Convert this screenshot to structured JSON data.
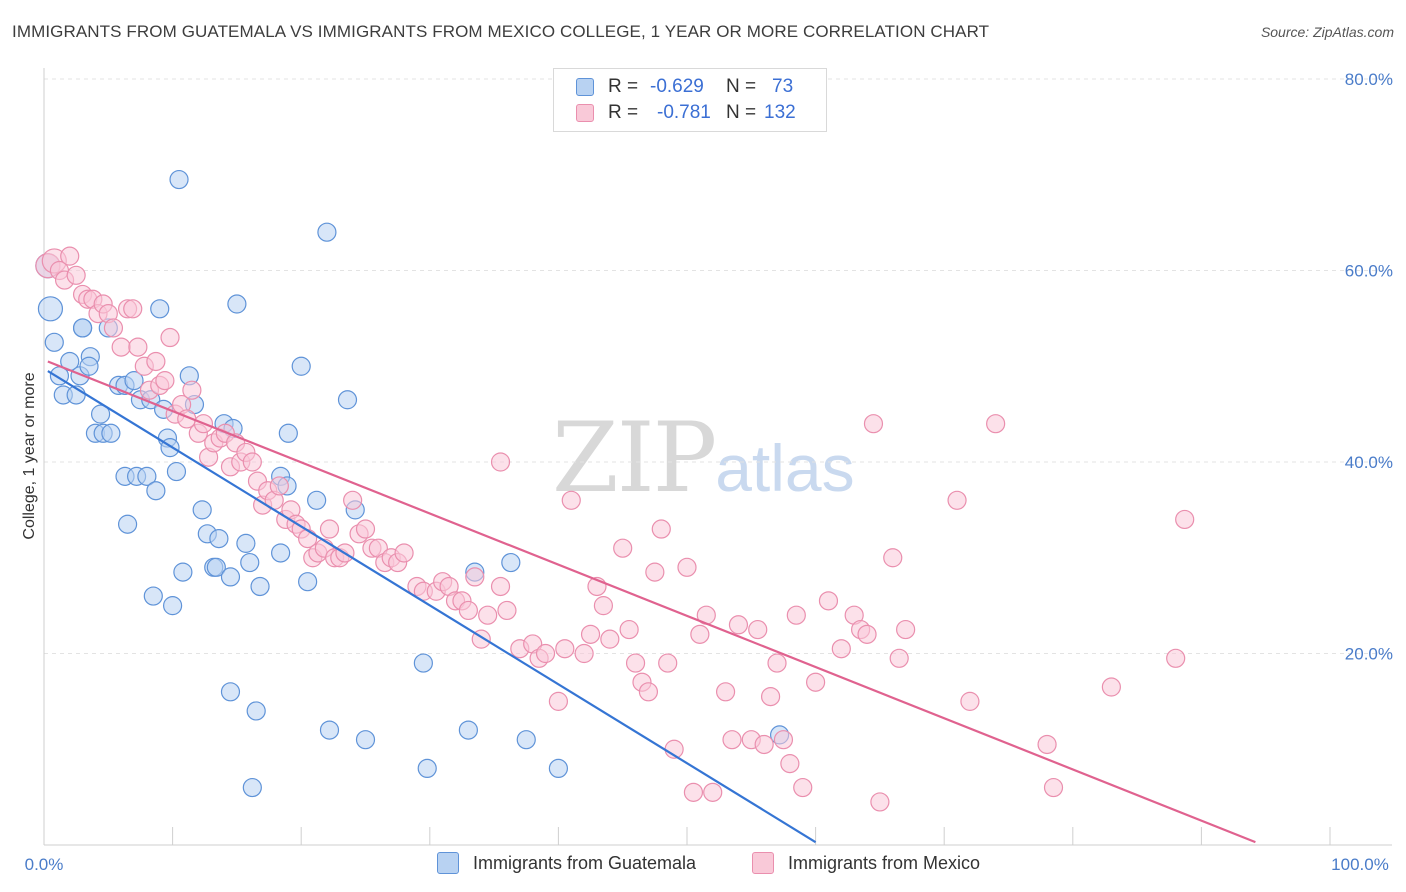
{
  "title": "IMMIGRANTS FROM GUATEMALA VS IMMIGRANTS FROM MEXICO COLLEGE, 1 YEAR OR MORE CORRELATION CHART",
  "source": "Source: ZipAtlas.com",
  "watermark": {
    "zip": "ZIP",
    "atlas": "atlas"
  },
  "legend_top": {
    "rows": [
      {
        "r_label": "R =",
        "r_value": "-0.629",
        "n_label": "N =",
        "n_value": "73"
      },
      {
        "r_label": "R =",
        "r_value": "-0.781",
        "n_label": "N =",
        "n_value": "132"
      }
    ]
  },
  "legend_bottom": {
    "items": [
      {
        "label": "Immigrants from Guatemala"
      },
      {
        "label": "Immigrants from Mexico"
      }
    ]
  },
  "colors": {
    "blue_fill": "#b8d2f2",
    "blue_stroke": "#5f93d8",
    "blue_line": "#3575d4",
    "pink_fill": "#f9c9d8",
    "pink_stroke": "#ea8fae",
    "pink_line": "#e0628f",
    "grid": "#e3e3e3",
    "axis_text": "#4a7cc9"
  },
  "chart_data": {
    "type": "scatter",
    "title": "IMMIGRANTS FROM GUATEMALA VS IMMIGRANTS FROM MEXICO COLLEGE, 1 YEAR OR MORE CORRELATION CHART",
    "xlabel": "",
    "ylabel": "College, 1 year or more",
    "xlim": [
      0,
      100
    ],
    "ylim": [
      0,
      80
    ],
    "x_tick_labels": [
      "0.0%",
      "100.0%"
    ],
    "y_ticks": [
      20,
      40,
      60,
      80
    ],
    "y_tick_labels": [
      "20.0%",
      "40.0%",
      "60.0%",
      "80.0%"
    ],
    "grid": true,
    "series": [
      {
        "name": "Immigrants from Guatemala",
        "R": -0.629,
        "N": 73,
        "trend": {
          "x": [
            0.3,
            60
          ],
          "y": [
            49.5,
            0.3
          ]
        },
        "points": [
          [
            0.3,
            60.5
          ],
          [
            0.5,
            56
          ],
          [
            0.8,
            52.5
          ],
          [
            1.2,
            49
          ],
          [
            1.5,
            47
          ],
          [
            2,
            50.5
          ],
          [
            2.5,
            47
          ],
          [
            2.8,
            49
          ],
          [
            3,
            54
          ],
          [
            3.6,
            51
          ],
          [
            3.5,
            50
          ],
          [
            4,
            43
          ],
          [
            4.4,
            45
          ],
          [
            4.6,
            43
          ],
          [
            5,
            54
          ],
          [
            5.2,
            43
          ],
          [
            5.8,
            48
          ],
          [
            6.3,
            48
          ],
          [
            7,
            48.5
          ],
          [
            6.3,
            38.5
          ],
          [
            6.5,
            33.5
          ],
          [
            7.2,
            38.5
          ],
          [
            7.5,
            46.5
          ],
          [
            8,
            38.5
          ],
          [
            8.3,
            46.5
          ],
          [
            8.5,
            26
          ],
          [
            8.7,
            37
          ],
          [
            9,
            56
          ],
          [
            9.3,
            45.5
          ],
          [
            9.6,
            42.5
          ],
          [
            9.8,
            41.5
          ],
          [
            10,
            25
          ],
          [
            10.3,
            39
          ],
          [
            10.5,
            69.5
          ],
          [
            10.8,
            28.5
          ],
          [
            11.3,
            49
          ],
          [
            11.7,
            46
          ],
          [
            12.3,
            35
          ],
          [
            12.7,
            32.5
          ],
          [
            13.2,
            29
          ],
          [
            13.4,
            29
          ],
          [
            13.6,
            32
          ],
          [
            14,
            44
          ],
          [
            14.5,
            28
          ],
          [
            14.7,
            43.5
          ],
          [
            15,
            56.5
          ],
          [
            14.5,
            16
          ],
          [
            15.7,
            31.5
          ],
          [
            16,
            29.5
          ],
          [
            16.5,
            14
          ],
          [
            16.8,
            27
          ],
          [
            16.2,
            6
          ],
          [
            18.4,
            38.5
          ],
          [
            18.9,
            37.5
          ],
          [
            19,
            43
          ],
          [
            18.4,
            30.5
          ],
          [
            20.5,
            27.5
          ],
          [
            20,
            50
          ],
          [
            21.2,
            36
          ],
          [
            22,
            64
          ],
          [
            24.2,
            35
          ],
          [
            22.2,
            12
          ],
          [
            23.6,
            46.5
          ],
          [
            25,
            11
          ],
          [
            29.5,
            19
          ],
          [
            29.8,
            8
          ],
          [
            33,
            12
          ],
          [
            33.5,
            28.5
          ],
          [
            36.3,
            29.5
          ],
          [
            37.5,
            11
          ],
          [
            57.2,
            11.5
          ],
          [
            40,
            8
          ],
          [
            3,
            54
          ]
        ]
      },
      {
        "name": "Immigrants from Mexico",
        "R": -0.781,
        "N": 132,
        "trend": {
          "x": [
            0.3,
            94.2
          ],
          "y": [
            50.5,
            0.3
          ]
        },
        "points": [
          [
            0.3,
            60.5
          ],
          [
            0.8,
            61
          ],
          [
            1.2,
            60
          ],
          [
            1.6,
            59
          ],
          [
            2,
            61.5
          ],
          [
            2.5,
            59.5
          ],
          [
            3,
            57.5
          ],
          [
            3.4,
            57
          ],
          [
            3.8,
            57
          ],
          [
            4.2,
            55.5
          ],
          [
            4.6,
            56.5
          ],
          [
            5,
            55.5
          ],
          [
            5.4,
            54
          ],
          [
            6,
            52
          ],
          [
            6.5,
            56
          ],
          [
            6.9,
            56
          ],
          [
            7.3,
            52
          ],
          [
            7.8,
            50
          ],
          [
            8.2,
            47.5
          ],
          [
            8.7,
            50.5
          ],
          [
            9,
            48
          ],
          [
            9.4,
            48.5
          ],
          [
            9.8,
            53
          ],
          [
            10.2,
            45
          ],
          [
            10.7,
            46
          ],
          [
            11.1,
            44.5
          ],
          [
            11.5,
            47.5
          ],
          [
            12,
            43
          ],
          [
            12.4,
            44
          ],
          [
            12.8,
            40.5
          ],
          [
            13.2,
            42
          ],
          [
            13.7,
            42.5
          ],
          [
            14.1,
            43
          ],
          [
            14.5,
            39.5
          ],
          [
            14.9,
            42
          ],
          [
            15.3,
            40
          ],
          [
            15.7,
            41
          ],
          [
            16.2,
            40
          ],
          [
            16.6,
            38
          ],
          [
            17,
            35.5
          ],
          [
            17.4,
            37
          ],
          [
            17.9,
            36
          ],
          [
            18.3,
            37.5
          ],
          [
            18.8,
            34
          ],
          [
            19.2,
            35
          ],
          [
            19.6,
            33.5
          ],
          [
            20,
            33
          ],
          [
            20.5,
            32
          ],
          [
            20.9,
            30
          ],
          [
            21.3,
            30.5
          ],
          [
            21.8,
            31
          ],
          [
            22.2,
            33
          ],
          [
            22.6,
            30
          ],
          [
            23,
            30
          ],
          [
            23.4,
            30.5
          ],
          [
            24,
            36
          ],
          [
            24.5,
            32.5
          ],
          [
            25,
            33
          ],
          [
            25.5,
            31
          ],
          [
            26,
            31
          ],
          [
            26.5,
            29.5
          ],
          [
            27,
            30
          ],
          [
            27.5,
            29.5
          ],
          [
            28,
            30.5
          ],
          [
            29,
            27
          ],
          [
            29.5,
            26.5
          ],
          [
            30.5,
            26.5
          ],
          [
            31,
            27.5
          ],
          [
            31.5,
            27
          ],
          [
            32,
            25.5
          ],
          [
            32.5,
            25.5
          ],
          [
            33,
            24.5
          ],
          [
            33.5,
            28
          ],
          [
            34,
            21.5
          ],
          [
            34.5,
            24
          ],
          [
            35.5,
            27
          ],
          [
            36,
            24.5
          ],
          [
            37,
            20.5
          ],
          [
            38,
            21
          ],
          [
            38.5,
            19.5
          ],
          [
            39,
            20
          ],
          [
            40,
            15
          ],
          [
            40.5,
            20.5
          ],
          [
            41,
            36
          ],
          [
            42,
            20
          ],
          [
            42.5,
            22
          ],
          [
            43,
            27
          ],
          [
            43.5,
            25
          ],
          [
            44,
            21.5
          ],
          [
            45,
            31
          ],
          [
            45.5,
            22.5
          ],
          [
            46,
            19
          ],
          [
            46.5,
            17
          ],
          [
            47,
            16
          ],
          [
            47.5,
            28.5
          ],
          [
            48,
            33
          ],
          [
            48.5,
            19
          ],
          [
            49,
            10
          ],
          [
            50,
            29
          ],
          [
            50.5,
            5.5
          ],
          [
            51,
            22
          ],
          [
            51.5,
            24
          ],
          [
            52,
            5.5
          ],
          [
            53,
            16
          ],
          [
            53.5,
            11
          ],
          [
            54,
            23
          ],
          [
            55,
            11
          ],
          [
            55.5,
            22.5
          ],
          [
            56,
            10.5
          ],
          [
            56.5,
            15.5
          ],
          [
            57,
            19
          ],
          [
            57.5,
            11
          ],
          [
            58,
            8.5
          ],
          [
            58.5,
            24
          ],
          [
            59,
            6
          ],
          [
            60,
            17
          ],
          [
            61,
            25.5
          ],
          [
            62,
            20.5
          ],
          [
            63,
            24
          ],
          [
            63.5,
            22.5
          ],
          [
            64,
            22
          ],
          [
            64.5,
            44
          ],
          [
            65,
            4.5
          ],
          [
            66,
            30
          ],
          [
            66.5,
            19.5
          ],
          [
            67,
            22.5
          ],
          [
            71,
            36
          ],
          [
            72,
            15
          ],
          [
            74,
            44
          ],
          [
            78,
            10.5
          ],
          [
            78.5,
            6
          ],
          [
            83,
            16.5
          ],
          [
            88,
            19.5
          ],
          [
            88.7,
            34
          ],
          [
            35.5,
            40
          ]
        ]
      }
    ]
  }
}
